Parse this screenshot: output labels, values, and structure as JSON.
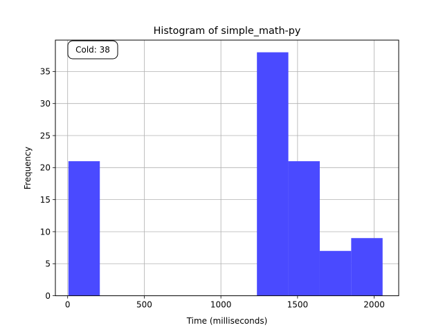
{
  "chart_data": {
    "type": "bar",
    "title": "Histogram of simple_math-py",
    "xlabel": "Time (milliseconds)",
    "ylabel": "Frequency",
    "xlim": [
      -80,
      2160
    ],
    "ylim": [
      0,
      39.9
    ],
    "xticks": [
      0,
      500,
      1000,
      1500,
      2000
    ],
    "yticks": [
      0,
      5,
      10,
      15,
      20,
      25,
      30,
      35
    ],
    "grid": true,
    "bar_color": "#4a4aff",
    "annotation": "Cold: 38",
    "bins": [
      {
        "x0": 5,
        "x1": 210,
        "count": 21
      },
      {
        "x0": 210,
        "x1": 415,
        "count": 0
      },
      {
        "x0": 415,
        "x1": 620,
        "count": 0
      },
      {
        "x0": 620,
        "x1": 825,
        "count": 0
      },
      {
        "x0": 825,
        "x1": 1030,
        "count": 0
      },
      {
        "x0": 1030,
        "x1": 1235,
        "count": 0
      },
      {
        "x0": 1235,
        "x1": 1440,
        "count": 38
      },
      {
        "x0": 1440,
        "x1": 1645,
        "count": 21
      },
      {
        "x0": 1645,
        "x1": 1850,
        "count": 7
      },
      {
        "x0": 1850,
        "x1": 2055,
        "count": 9
      }
    ]
  }
}
